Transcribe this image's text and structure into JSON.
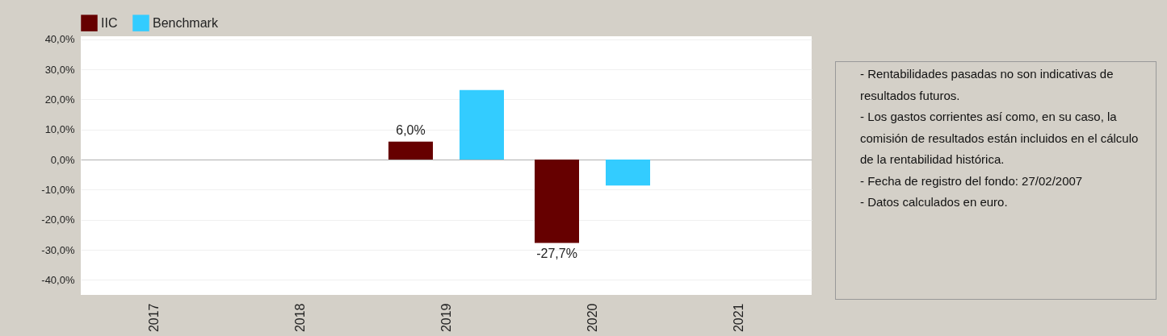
{
  "chart_data": {
    "type": "bar",
    "categories": [
      "2017",
      "2018",
      "2019",
      "2020",
      "2021"
    ],
    "series": [
      {
        "name": "IIC",
        "color": "#660000",
        "values": [
          null,
          null,
          6.0,
          -27.7,
          null
        ],
        "value_labels": [
          null,
          null,
          "6,0%",
          "-27,7%",
          null
        ]
      },
      {
        "name": "Benchmark",
        "color": "#33ccff",
        "values": [
          null,
          null,
          23.1,
          -8.6,
          null
        ]
      }
    ],
    "ylim": [
      -45,
      41
    ],
    "yticks": [
      {
        "value": -40,
        "label": "-40,0%"
      },
      {
        "value": -30,
        "label": "-30,0%"
      },
      {
        "value": -20,
        "label": "-20,0%"
      },
      {
        "value": -10,
        "label": "-10,0%"
      },
      {
        "value": 0,
        "label": "0,0%"
      },
      {
        "value": 10,
        "label": "10,0%"
      },
      {
        "value": 20,
        "label": "20,0%"
      },
      {
        "value": 30,
        "label": "30,0%"
      },
      {
        "value": 40,
        "label": "40,0%"
      }
    ],
    "grid": "y",
    "legend": "top",
    "annotations": [
      "- Rentabilidades pasadas no son indicativas de resultados futuros.",
      "- Los gastos corrientes así como, en su caso, la comisión de resultados están incluidos en el cálculo de la rentabilidad histórica.",
      "- Fecha de registro del fondo: 27/02/2007",
      "- Datos calculados en euro."
    ]
  }
}
